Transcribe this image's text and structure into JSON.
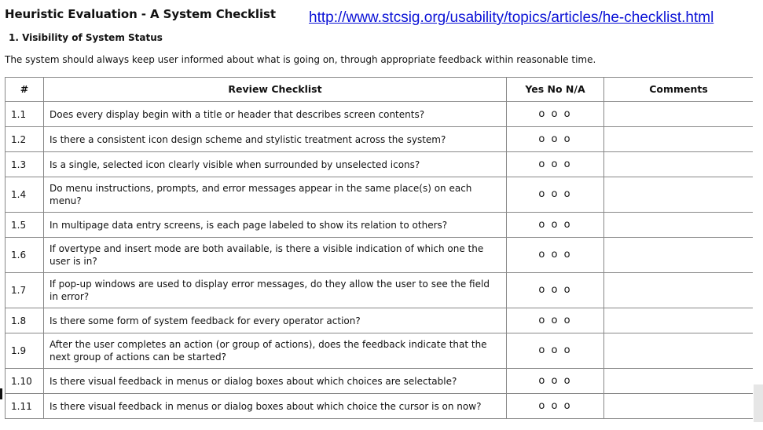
{
  "document": {
    "title": "Heuristic Evaluation - A System Checklist",
    "source_url": "http://www.stcsig.org/usability/topics/articles/he-checklist.html",
    "section_heading": "1. Visibility of System Status",
    "intro": "The system should always keep user informed about what is going on, through appropriate feedback within reasonable time."
  },
  "table": {
    "headers": {
      "number": "#",
      "checklist": "Review Checklist",
      "answer": "Yes No N/A",
      "comments": "Comments"
    },
    "rows": [
      {
        "number": "1.1",
        "question": "Does every display begin with a title or header that describes screen contents?",
        "options": "o o o",
        "comment": ""
      },
      {
        "number": "1.2",
        "question": "Is there a consistent icon design scheme and stylistic treatment across the system?",
        "options": "o o o",
        "comment": ""
      },
      {
        "number": "1.3",
        "question": "Is a single, selected icon clearly visible when surrounded by unselected icons?",
        "options": "o o o",
        "comment": ""
      },
      {
        "number": "1.4",
        "question": "Do menu instructions, prompts, and error messages appear in the same place(s) on each menu?",
        "options": "o o o",
        "comment": ""
      },
      {
        "number": "1.5",
        "question": "In multipage data entry screens, is each page labeled to show its relation to others?",
        "options": "o o o",
        "comment": ""
      },
      {
        "number": "1.6",
        "question": "If overtype and insert mode are both available, is there a visible indication of which one the user is in?",
        "options": "o o o",
        "comment": ""
      },
      {
        "number": "1.7",
        "question": "If pop-up windows are used to display error messages, do they allow the user to see the field in error?",
        "options": "o o o",
        "comment": ""
      },
      {
        "number": "1.8",
        "question": "Is there some form of system feedback for every operator action?",
        "options": "o o o",
        "comment": ""
      },
      {
        "number": "1.9",
        "question": "After the user completes an action (or group of actions), does the feedback indicate that the next group of actions can be started?",
        "options": "o o o",
        "comment": ""
      },
      {
        "number": "1.10",
        "question": "Is there visual feedback in menus or dialog boxes about which choices are selectable?",
        "options": "o o o",
        "comment": ""
      },
      {
        "number": "1.11",
        "question": "Is there visual feedback in menus or dialog boxes about which choice the cursor is on now?",
        "options": "o o o",
        "comment": ""
      }
    ]
  }
}
